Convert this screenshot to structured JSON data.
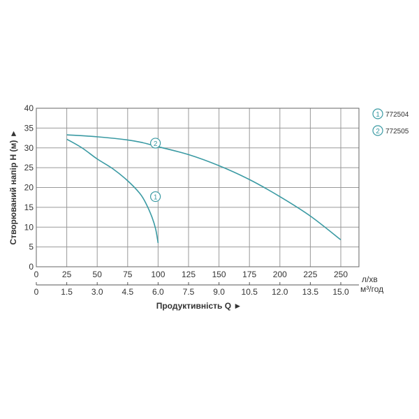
{
  "chart_data": {
    "type": "line",
    "ylabel": "Створюваний напір H (м) ►",
    "xlabel": "Продуктивність  Q ►",
    "xlim": [
      0,
      265
    ],
    "ylim": [
      0,
      40
    ],
    "grid": true,
    "x_ticks": [
      "0",
      "25",
      "50",
      "75",
      "100",
      "125",
      "150",
      "175",
      "200",
      "225",
      "250"
    ],
    "x_unit": "л/хв",
    "x2_ticks": [
      "0",
      "1.5",
      "3.0",
      "4.5",
      "6.0",
      "7.5",
      "9.0",
      "10.5",
      "12.0",
      "13.5",
      "15.0"
    ],
    "x2_unit": "м³/год",
    "y_ticks": [
      "0",
      "5",
      "10",
      "15",
      "20",
      "25",
      "30",
      "35",
      "40"
    ],
    "legend_placement": "right",
    "series_color": "#3a9aa3",
    "series": [
      {
        "marker": "1",
        "name": "772504",
        "x": [
          25,
          37.5,
          50,
          62.5,
          75,
          85,
          90,
          95,
          98,
          100
        ],
        "y": [
          32.2,
          30,
          27.2,
          24.8,
          21.7,
          18.5,
          16,
          12.5,
          9.5,
          6
        ],
        "label_at": [
          87.5,
          17.7
        ]
      },
      {
        "marker": "2",
        "name": "772505",
        "x": [
          25,
          50,
          75,
          87.5,
          100,
          125,
          150,
          175,
          200,
          225,
          250
        ],
        "y": [
          33.3,
          32.8,
          32,
          31.3,
          30.3,
          28.3,
          25.5,
          22,
          17.7,
          12.8,
          6.8
        ],
        "label_at": [
          87.5,
          31.2
        ]
      }
    ]
  }
}
